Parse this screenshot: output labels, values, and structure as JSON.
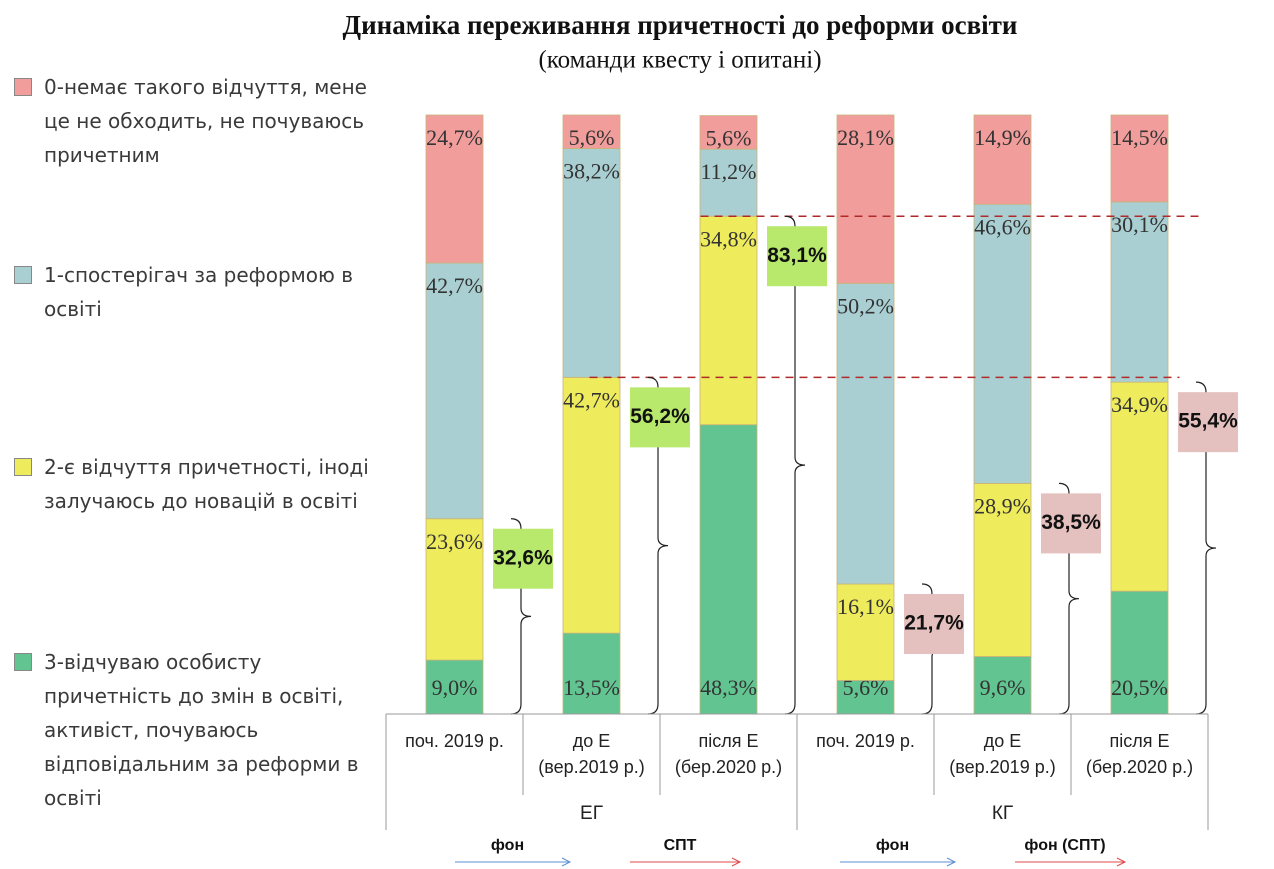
{
  "chart_data": {
    "type": "stacked_bar",
    "title": "Динаміка переживання причетності до реформи освіти",
    "subtitle": "(команди квесту і опитані)",
    "categories": [
      [
        "поч. 2019 р."
      ],
      [
        "до Е",
        "(вер.2019 р.)"
      ],
      [
        "після Е",
        "(бер.2020 р.)"
      ],
      [
        "поч. 2019 р."
      ],
      [
        "до Е",
        "(вер.2019 р.)"
      ],
      [
        "після Е",
        "(бер.2020 р.)"
      ]
    ],
    "groups": [
      {
        "label": "ЕГ",
        "span": 3
      },
      {
        "label": "КГ",
        "span": 3
      }
    ],
    "ylim": [
      0,
      100
    ],
    "series": [
      {
        "name": "3-відчуваю особисту причетність до змін в освіті, активіст, почуваюсь відповідальним за реформи в освіті",
        "color": "#62c491",
        "values": [
          9.0,
          13.5,
          48.3,
          5.6,
          9.6,
          20.5
        ],
        "value_labels": [
          "9,0%",
          "13,5%",
          "48,3%",
          "5,6%",
          "9,6%",
          "20,5%"
        ]
      },
      {
        "name": "2-є відчуття причетності, іноді залучаюсь до новацій в освіті",
        "color": "#eeeb5c",
        "values": [
          23.6,
          42.7,
          34.8,
          16.1,
          28.9,
          34.9
        ],
        "value_labels": [
          "23,6%",
          "42,7%",
          "34,8%",
          "16,1%",
          "28,9%",
          "34,9%"
        ]
      },
      {
        "name": "1-спостерігач за реформою в освіті",
        "color": "#a9cfd3",
        "values": [
          42.7,
          38.2,
          11.2,
          50.2,
          46.6,
          30.1
        ],
        "value_labels": [
          "42,7%",
          "38,2%",
          "11,2%",
          "50,2%",
          "46,6%",
          "30,1%"
        ]
      },
      {
        "name": "0-немає такого відчуття, мене це не обходить, не почуваюсь причетним",
        "color": "#f19d9b",
        "values": [
          24.7,
          5.6,
          5.6,
          28.1,
          14.9,
          14.5
        ],
        "value_labels": [
          "24,7%",
          "5,6%",
          "5,6%",
          "28,1%",
          "14,9%",
          "14,5%"
        ]
      }
    ],
    "sum_labels": [
      "32,6%",
      "56,2%",
      "83,1%",
      "21,7%",
      "38,5%",
      "55,4%"
    ],
    "sum_colors": [
      "#b8e86c",
      "#b8e86c",
      "#b8e86c",
      "#e4c0bf",
      "#e4c0bf",
      "#e4c0bf"
    ],
    "arrows": [
      {
        "label": "фон",
        "color": "#5b8fd6"
      },
      {
        "label": "СПТ",
        "color": "#e04848"
      },
      {
        "label": "фон",
        "color": "#5b8fd6"
      },
      {
        "label": "фон (СПТ)",
        "color": "#e04848"
      }
    ]
  }
}
